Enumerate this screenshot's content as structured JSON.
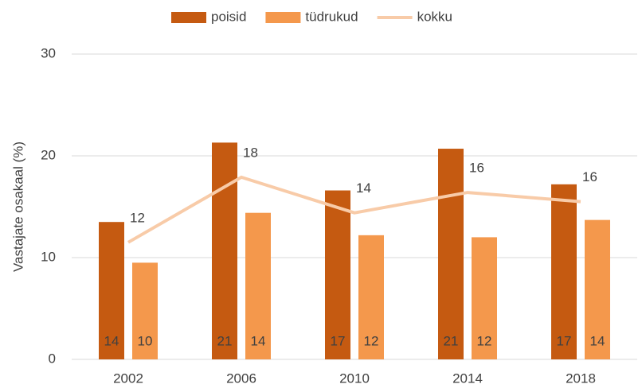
{
  "chart_data": {
    "type": "bar-line",
    "y_label": "Vastajate osakaal (%)",
    "categories": [
      "2002",
      "2006",
      "2010",
      "2014",
      "2018"
    ],
    "series": [
      {
        "name": "poisid",
        "color": "#c55a11",
        "kind": "bar",
        "values": [
          13.5,
          21.3,
          16.6,
          20.7,
          17.2
        ],
        "value_labels": [
          "14",
          "21",
          "17",
          "21",
          "17"
        ]
      },
      {
        "name": "tüdrukud",
        "color": "#f4984c",
        "kind": "bar",
        "values": [
          9.5,
          14.4,
          12.2,
          12.0,
          13.7
        ],
        "value_labels": [
          "10",
          "14",
          "12",
          "12",
          "14"
        ]
      },
      {
        "name": "kokku",
        "color": "#f8cba8",
        "kind": "line",
        "values": [
          11.5,
          17.9,
          14.4,
          16.4,
          15.5
        ],
        "value_labels": [
          "12",
          "18",
          "14",
          "16",
          "16"
        ]
      }
    ],
    "ylim": [
      0,
      30
    ],
    "yticks": [
      0,
      10,
      20,
      30
    ],
    "grid": true,
    "legend": "top"
  }
}
